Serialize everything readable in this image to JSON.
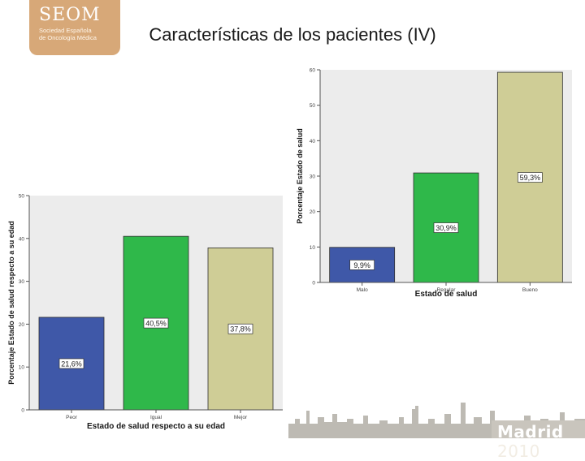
{
  "logo": {
    "name": "SEOM",
    "sub_line1": "Sociedad Española",
    "sub_line2": "de Oncología Médica"
  },
  "slide": {
    "title": "Características de los pacientes (IV)"
  },
  "footer": {
    "city": "Madrid",
    "year": "2010"
  },
  "colors": {
    "blue": "#3f58a8",
    "green": "#2fb84a",
    "khaki": "#cfcd96",
    "plot_bg": "#ececec",
    "logo_bg": "#d7a878"
  },
  "chart_data": [
    {
      "type": "bar",
      "categories": [
        "Malo",
        "Regular",
        "Bueno"
      ],
      "values": [
        9.9,
        30.9,
        59.3
      ],
      "data_labels": [
        "9,9%",
        "30,9%",
        "59,3%"
      ],
      "xlabel": "Estado de salud",
      "ylabel": "Porcentaje Estado de salud",
      "ylim": [
        0,
        60
      ],
      "yticks": [
        "0",
        "10",
        "20",
        "30",
        "40",
        "50",
        "60"
      ],
      "colors": [
        "#3f58a8",
        "#2fb84a",
        "#cfcd96"
      ]
    },
    {
      "type": "bar",
      "categories": [
        "Peor",
        "Igual",
        "Mejor"
      ],
      "values": [
        21.6,
        40.5,
        37.8
      ],
      "data_labels": [
        "21,6%",
        "40,5%",
        "37,8%"
      ],
      "xlabel": "Estado de salud respecto a su edad",
      "ylabel": "Porcentaje Estado de salud respecto a su edad",
      "ylim": [
        0,
        50
      ],
      "yticks": [
        "0",
        "10",
        "20",
        "30",
        "40",
        "50"
      ],
      "colors": [
        "#3f58a8",
        "#2fb84a",
        "#cfcd96"
      ]
    }
  ]
}
